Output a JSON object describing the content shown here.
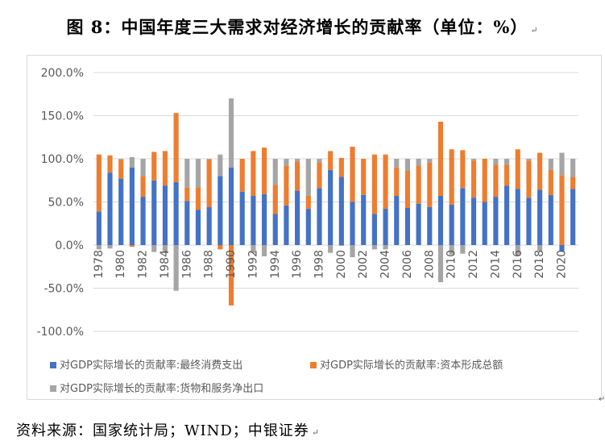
{
  "title": "图 8：中国年度三大需求对经济增长的贡献率（单位：%）",
  "source": "资料来源：国家统计局；WIND；中银证券",
  "chart_data": {
    "type": "bar",
    "stacked": true,
    "ylim": [
      -100,
      200
    ],
    "yticks": [
      -100,
      -50,
      0,
      50,
      100,
      150,
      200
    ],
    "ytick_labels": [
      "-100.0%",
      "-50.0%",
      "0.0%",
      "50.0%",
      "100.0%",
      "150.0%",
      "200.0%"
    ],
    "grid": true,
    "legend_position": "bottom",
    "categories": [
      "1978",
      "1979",
      "1980",
      "1981",
      "1982",
      "1983",
      "1984",
      "1985",
      "1986",
      "1987",
      "1988",
      "1989",
      "1990",
      "1991",
      "1992",
      "1993",
      "1994",
      "1995",
      "1996",
      "1997",
      "1998",
      "1999",
      "2000",
      "2001",
      "2002",
      "2003",
      "2004",
      "2005",
      "2006",
      "2007",
      "2008",
      "2009",
      "2010",
      "2011",
      "2012",
      "2013",
      "2014",
      "2015",
      "2016",
      "2017",
      "2018",
      "2019",
      "2020",
      "2021"
    ],
    "xtick_labels": [
      "1978",
      "1980",
      "1982",
      "1984",
      "1986",
      "1988",
      "1990",
      "1992",
      "1994",
      "1996",
      "1998",
      "2000",
      "2002",
      "2004",
      "2006",
      "2008",
      "2010",
      "2012",
      "2014",
      "2016",
      "2018",
      "2020"
    ],
    "series": [
      {
        "name": "对GDP实际增长的贡献率:最终消费支出",
        "color": "#4472c4",
        "values": [
          39,
          84,
          77,
          90,
          56,
          75,
          69,
          73,
          51,
          41,
          44,
          80,
          90,
          62,
          57,
          59,
          36,
          46,
          63,
          42,
          66,
          87,
          79,
          50,
          58,
          36,
          42,
          57,
          43,
          48,
          44,
          57,
          47,
          66,
          55,
          50,
          56,
          69,
          65,
          55,
          64,
          58,
          -7,
          65
        ]
      },
      {
        "name": "对GDP实际增长的贡献率:资本形成总额",
        "color": "#ed7d31",
        "values": [
          66,
          20,
          22,
          -2,
          24,
          33,
          40,
          80,
          16,
          26,
          55,
          -5,
          -70,
          38,
          52,
          54,
          34,
          46,
          34,
          15,
          30,
          22,
          22,
          64,
          42,
          69,
          63,
          33,
          43,
          44,
          52,
          86,
          64,
          44,
          43,
          50,
          37,
          24,
          46,
          43,
          43,
          29,
          81,
          14
        ]
      },
      {
        "name": "对GDP实际增长的贡献率:货物和服务净出口",
        "color": "#a5a5a5",
        "values": [
          -5,
          -4,
          1,
          12,
          20,
          -8,
          -9,
          -53,
          33,
          33,
          1,
          25,
          80,
          0,
          -9,
          -13,
          30,
          8,
          3,
          43,
          4,
          -9,
          -1,
          -14,
          0,
          -5,
          -5,
          10,
          14,
          8,
          4,
          -43,
          -11,
          -10,
          2,
          0,
          7,
          7,
          -11,
          2,
          -7,
          13,
          26,
          21
        ]
      }
    ]
  }
}
